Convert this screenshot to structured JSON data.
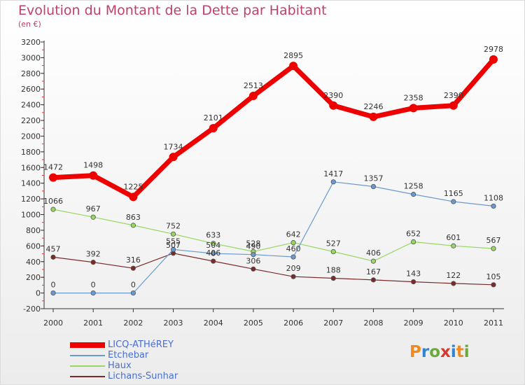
{
  "title": "Evolution du Montant de la Dette par Habitant",
  "subtitle": "(en €)",
  "logo": {
    "letters": [
      "P",
      "r",
      "o",
      "x",
      "i",
      "t",
      "i"
    ],
    "colors": [
      "#f08a1c",
      "#2f86d0",
      "#6aaa3a",
      "#d6392f",
      "#2f86d0",
      "#f08a1c",
      "#6aaa3a"
    ]
  },
  "chart_data": {
    "type": "line",
    "x": [
      "2000",
      "2001",
      "2002",
      "2003",
      "2004",
      "2005",
      "2006",
      "2007",
      "2008",
      "2009",
      "2010",
      "2011"
    ],
    "ylim": [
      -200,
      3200
    ],
    "yticks": [
      "-200",
      "0",
      "200",
      "400",
      "600",
      "800",
      "1000",
      "1200",
      "1400",
      "1600",
      "1800",
      "2000",
      "2200",
      "2400",
      "2600",
      "2800",
      "3000",
      "3200"
    ],
    "grid": false,
    "legend_position": "bottom-left",
    "series": [
      {
        "name": "LICQ-ATHéREY",
        "color": "#ee0000",
        "values": [
          1472,
          1498,
          1225,
          1734,
          2101,
          2513,
          2895,
          2390,
          2246,
          2358,
          2390,
          2978
        ]
      },
      {
        "name": "Etchebar",
        "color": "#6a9ad0",
        "values": [
          0,
          0,
          0,
          555,
          504,
          490,
          460,
          1417,
          1357,
          1258,
          1165,
          1108
        ]
      },
      {
        "name": "Haux",
        "color": "#96d860",
        "values": [
          1066,
          967,
          863,
          752,
          633,
          528,
          642,
          527,
          406,
          652,
          601,
          567
        ]
      },
      {
        "name": "Lichans-Sunhar",
        "color": "#7a2a2a",
        "values": [
          457,
          392,
          316,
          507,
          406,
          306,
          209,
          188,
          167,
          143,
          122,
          105
        ]
      }
    ]
  }
}
